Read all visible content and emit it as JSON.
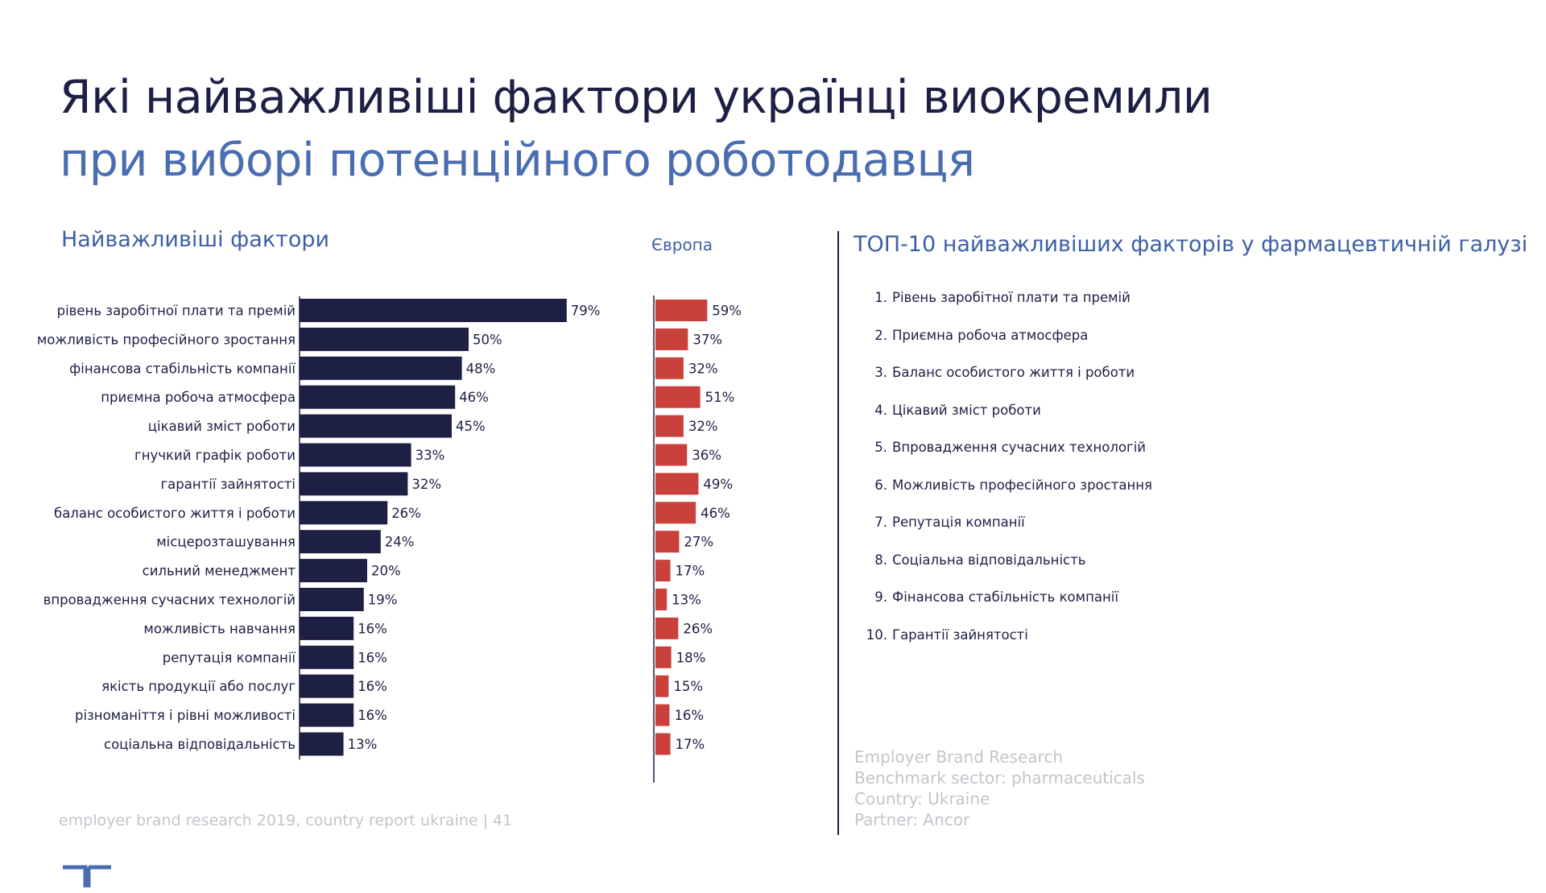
{
  "title": {
    "line1": "Які найважливіші фактори українці виокремили",
    "line2": "при виборі потенційного роботодавця"
  },
  "sections": {
    "left": "Найважливіші фактори",
    "europe": "Європа",
    "right": "ТОП-10 найважливіших факторів у фармацевтичній галузі"
  },
  "chart_data": {
    "type": "bar",
    "orientation": "horizontal",
    "categories": [
      "рівень заробітної плати та премій",
      "можливість професійного зростання",
      "фінансова стабільність компанії",
      "приємна робоча атмосфера",
      "цікавий зміст роботи",
      "гнучкий графік роботи",
      "гарантії зайнятості",
      "баланс особистого життя і роботи",
      "місцерозташування",
      "сильний менеджмент",
      "впровадження сучасних технологій",
      "можливість навчання",
      "репутація компанії",
      "якість продукції або послуг",
      "різноманіття і рівні можливості",
      "соціальна відповідальність"
    ],
    "series": [
      {
        "values": [
          79,
          50,
          48,
          46,
          45,
          33,
          32,
          26,
          24,
          20,
          19,
          16,
          16,
          16,
          16,
          13
        ],
        "labels": [
          "79%",
          "50%",
          "48%",
          "46%",
          "45%",
          "33%",
          "32%",
          "26%",
          "24%",
          "20%",
          "19%",
          "16%",
          "16%",
          "16%",
          "16%",
          "13%"
        ],
        "color": "#1e1f45"
      },
      {
        "name": "Європа",
        "values": [
          59,
          37,
          32,
          51,
          32,
          36,
          49,
          46,
          27,
          17,
          13,
          26,
          18,
          15,
          16,
          17
        ],
        "labels": [
          "59%",
          "37%",
          "32%",
          "51%",
          "32%",
          "36%",
          "49%",
          "46%",
          "27%",
          "17%",
          "13%",
          "26%",
          "18%",
          "15%",
          "16%",
          "17%"
        ],
        "color": "#c9413a"
      }
    ]
  },
  "top10": [
    {
      "num": "1.",
      "text": "Рівень заробітної плати та премій"
    },
    {
      "num": "2.",
      "text": "Приємна робоча атмосфера"
    },
    {
      "num": "3.",
      "text": "Баланс особистого життя і роботи"
    },
    {
      "num": "4.",
      "text": "Цікавий зміст роботи"
    },
    {
      "num": "5.",
      "text": "Впровадження сучасних технологій"
    },
    {
      "num": "6.",
      "text": "Можливість професійного зростання"
    },
    {
      "num": "7.",
      "text": "Репутація компанії"
    },
    {
      "num": "8.",
      "text": "Соціальна відповідальність"
    },
    {
      "num": "9.",
      "text": "Фінансова стабільність компанії"
    },
    {
      "num": "10.",
      "text": "Гарантії зайнятості"
    }
  ],
  "meta": {
    "line1": "Employer Brand Research",
    "line2": "Benchmark sector: pharmaceuticals",
    "line3": "Country: Ukraine",
    "line4": "Partner: Ancor"
  },
  "footer": "employer brand research 2019, country report ukraine  |  41",
  "colors": {
    "navy": "#1e1f45",
    "accent_blue": "#4a6db1",
    "europe_red": "#c9413a",
    "muted_gray": "#c3c5cc"
  },
  "logo_icon": "randstad-logo-icon"
}
